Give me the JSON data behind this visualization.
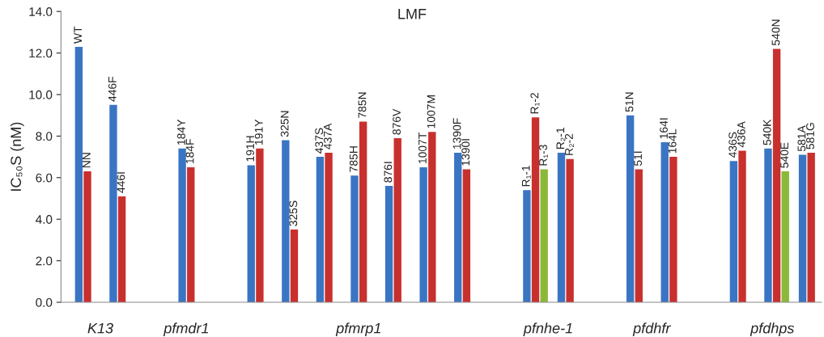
{
  "chart_data": {
    "type": "bar",
    "title": "LMF",
    "ylabel": "IC₅₀S (nM)",
    "categories": [
      "WT",
      "NN",
      null,
      null,
      "446F",
      "446I",
      null,
      null,
      null,
      null,
      null,
      null,
      "184Y",
      "184F",
      null,
      null,
      null,
      null,
      null,
      null,
      "191H",
      "191Y",
      null,
      null,
      "325N",
      "325S",
      null,
      null,
      "437S",
      "437A",
      null,
      null,
      "785H",
      "785N",
      null,
      null,
      "876I",
      "876V",
      null,
      null,
      "1007T",
      "1007M",
      null,
      null,
      "1390F",
      "1390I",
      null,
      null,
      null,
      null,
      null,
      null,
      "R₁-1",
      "R₁-2",
      "R₁-3",
      null,
      "R₂-1",
      "R₂-2",
      null,
      null,
      null,
      null,
      null,
      null,
      "51N",
      "51I",
      null,
      null,
      "164I",
      "164L",
      null,
      null,
      null,
      null,
      null,
      null,
      "436S",
      "436A",
      null,
      null,
      "540K",
      "540N",
      "540E",
      null,
      "581A",
      "581G"
    ],
    "values": [
      12.3,
      6.3,
      null,
      null,
      9.5,
      5.1,
      null,
      null,
      null,
      null,
      null,
      null,
      7.4,
      6.5,
      null,
      null,
      null,
      null,
      null,
      null,
      6.6,
      7.4,
      null,
      null,
      7.8,
      3.5,
      null,
      null,
      7.0,
      7.2,
      null,
      null,
      6.1,
      8.7,
      null,
      null,
      5.6,
      7.9,
      null,
      null,
      6.5,
      8.2,
      null,
      null,
      7.2,
      6.4,
      null,
      null,
      null,
      null,
      null,
      null,
      5.4,
      8.9,
      6.4,
      null,
      7.2,
      6.9,
      null,
      null,
      null,
      null,
      null,
      null,
      9.0,
      6.4,
      null,
      null,
      7.7,
      7.0,
      null,
      null,
      null,
      null,
      null,
      null,
      6.8,
      7.3,
      null,
      null,
      7.4,
      12.2,
      6.3,
      null,
      7.1,
      7.2
    ],
    "colors": [
      "#3a75c4",
      "#c8302e",
      null,
      null,
      "#3a75c4",
      "#c8302e",
      null,
      null,
      null,
      null,
      null,
      null,
      "#3a75c4",
      "#c8302e",
      null,
      null,
      null,
      null,
      null,
      null,
      "#3a75c4",
      "#c8302e",
      null,
      null,
      "#3a75c4",
      "#c8302e",
      null,
      null,
      "#3a75c4",
      "#c8302e",
      null,
      null,
      "#3a75c4",
      "#c8302e",
      null,
      null,
      "#3a75c4",
      "#c8302e",
      null,
      null,
      "#3a75c4",
      "#c8302e",
      null,
      null,
      "#3a75c4",
      "#c8302e",
      null,
      null,
      null,
      null,
      null,
      null,
      "#3a75c4",
      "#c8302e",
      "#8cb83a",
      null,
      "#3a75c4",
      "#c8302e",
      null,
      null,
      null,
      null,
      null,
      null,
      "#3a75c4",
      "#c8302e",
      null,
      null,
      "#3a75c4",
      "#c8302e",
      null,
      null,
      null,
      null,
      null,
      null,
      "#3a75c4",
      "#c8302e",
      null,
      null,
      "#3a75c4",
      "#c8302e",
      "#8cb83a",
      null,
      "#3a75c4",
      "#c8302e"
    ],
    "ylim": [
      0,
      14
    ],
    "yticks": [
      {
        "value": 0,
        "label": "0.0"
      },
      {
        "value": 2,
        "label": "2.0"
      },
      {
        "value": 4,
        "label": "4.0"
      },
      {
        "value": 6,
        "label": "6.0"
      },
      {
        "value": 8,
        "label": "8.0"
      },
      {
        "value": 10,
        "label": "10.0"
      },
      {
        "value": 12,
        "label": "12.0"
      },
      {
        "value": 14,
        "label": "14.0"
      }
    ],
    "annotations": [
      "K13",
      "pfmdr1",
      "pfmrp1",
      "pfnhe-1",
      "pfdhfr",
      "pfdhps"
    ]
  }
}
